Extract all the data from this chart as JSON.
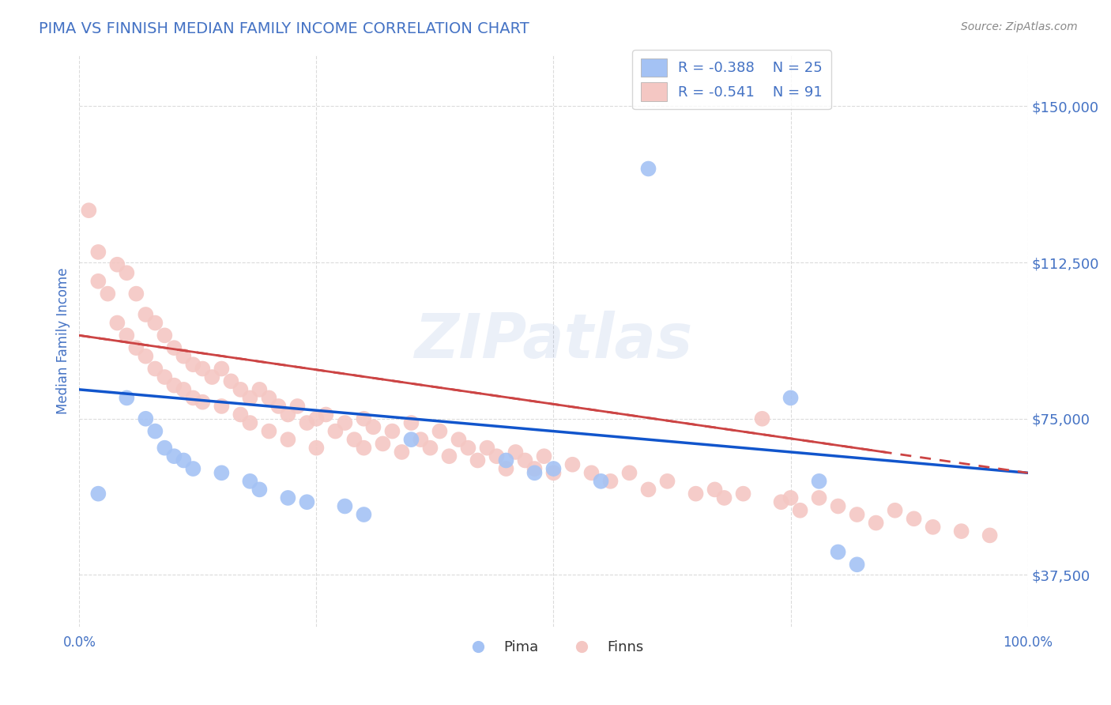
{
  "title": "PIMA VS FINNISH MEDIAN FAMILY INCOME CORRELATION CHART",
  "source_text": "Source: ZipAtlas.com",
  "ylabel": "Median Family Income",
  "watermark": "ZIPatlas",
  "xmin": 0.0,
  "xmax": 1.0,
  "ymin": 25000,
  "ymax": 162500,
  "yticks": [
    37500,
    75000,
    112500,
    150000
  ],
  "ytick_labels": [
    "$37,500",
    "$75,000",
    "$112,500",
    "$150,000"
  ],
  "xticks": [
    0.0,
    0.25,
    0.5,
    0.75,
    1.0
  ],
  "xtick_labels": [
    "0.0%",
    "",
    "",
    "",
    "100.0%"
  ],
  "pima_color": "#a4c2f4",
  "finns_color": "#f4c7c3",
  "pima_line_color": "#1155cc",
  "finns_line_color": "#cc4444",
  "title_color": "#4472c4",
  "axis_color": "#4472c4",
  "grid_color": "#cccccc",
  "background_color": "#ffffff",
  "legend_r_pima": "R = -0.388",
  "legend_n_pima": "N = 25",
  "legend_r_finns": "R = -0.541",
  "legend_n_finns": "N = 91",
  "pima_intercept": 82000,
  "pima_slope": -20000,
  "finns_intercept": 95000,
  "finns_slope": -33000,
  "pima_x": [
    0.02,
    0.05,
    0.07,
    0.08,
    0.09,
    0.1,
    0.11,
    0.12,
    0.15,
    0.18,
    0.19,
    0.22,
    0.24,
    0.28,
    0.3,
    0.35,
    0.45,
    0.48,
    0.5,
    0.55,
    0.6,
    0.75,
    0.78,
    0.8,
    0.82
  ],
  "pima_y": [
    57000,
    80000,
    75000,
    72000,
    68000,
    66000,
    65000,
    63000,
    62000,
    60000,
    58000,
    56000,
    55000,
    54000,
    52000,
    70000,
    65000,
    62000,
    63000,
    60000,
    135000,
    80000,
    60000,
    43000,
    40000
  ],
  "finns_x": [
    0.01,
    0.02,
    0.02,
    0.03,
    0.04,
    0.04,
    0.05,
    0.05,
    0.06,
    0.06,
    0.07,
    0.07,
    0.08,
    0.08,
    0.09,
    0.09,
    0.1,
    0.1,
    0.11,
    0.11,
    0.12,
    0.12,
    0.13,
    0.13,
    0.14,
    0.15,
    0.15,
    0.16,
    0.17,
    0.17,
    0.18,
    0.18,
    0.19,
    0.2,
    0.2,
    0.21,
    0.22,
    0.22,
    0.23,
    0.24,
    0.25,
    0.25,
    0.26,
    0.27,
    0.28,
    0.29,
    0.3,
    0.3,
    0.31,
    0.32,
    0.33,
    0.34,
    0.35,
    0.36,
    0.37,
    0.38,
    0.39,
    0.4,
    0.41,
    0.42,
    0.43,
    0.44,
    0.45,
    0.46,
    0.47,
    0.48,
    0.49,
    0.5,
    0.52,
    0.54,
    0.56,
    0.58,
    0.6,
    0.62,
    0.65,
    0.67,
    0.68,
    0.7,
    0.72,
    0.74,
    0.75,
    0.76,
    0.78,
    0.8,
    0.82,
    0.84,
    0.86,
    0.88,
    0.9,
    0.93,
    0.96
  ],
  "finns_y": [
    125000,
    115000,
    108000,
    105000,
    112000,
    98000,
    110000,
    95000,
    105000,
    92000,
    100000,
    90000,
    98000,
    87000,
    95000,
    85000,
    92000,
    83000,
    90000,
    82000,
    88000,
    80000,
    87000,
    79000,
    85000,
    87000,
    78000,
    84000,
    82000,
    76000,
    80000,
    74000,
    82000,
    80000,
    72000,
    78000,
    76000,
    70000,
    78000,
    74000,
    75000,
    68000,
    76000,
    72000,
    74000,
    70000,
    75000,
    68000,
    73000,
    69000,
    72000,
    67000,
    74000,
    70000,
    68000,
    72000,
    66000,
    70000,
    68000,
    65000,
    68000,
    66000,
    63000,
    67000,
    65000,
    63000,
    66000,
    62000,
    64000,
    62000,
    60000,
    62000,
    58000,
    60000,
    57000,
    58000,
    56000,
    57000,
    75000,
    55000,
    56000,
    53000,
    56000,
    54000,
    52000,
    50000,
    53000,
    51000,
    49000,
    48000,
    47000
  ]
}
